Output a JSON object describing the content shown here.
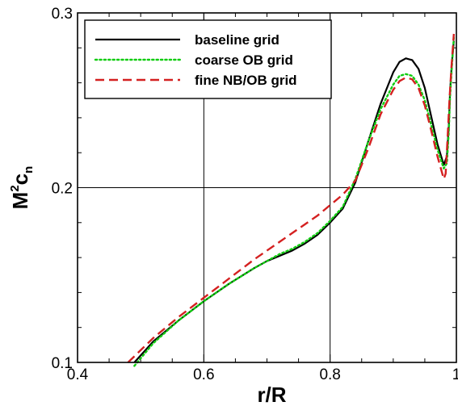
{
  "chart_data": {
    "type": "line",
    "xlabel": "r/R",
    "ylabel": {
      "base": "M",
      "sup": "2",
      "mid": "c",
      "sub": "n"
    },
    "xlim": [
      0.4,
      1.0
    ],
    "ylim": [
      0.1,
      0.3
    ],
    "xticks": [
      0.4,
      0.6,
      0.8,
      1.0
    ],
    "xtick_labels": [
      "0.4",
      "0.6",
      "0.8",
      "1"
    ],
    "yticks": [
      0.1,
      0.2,
      0.3
    ],
    "ytick_labels": [
      "0.1",
      "0.2",
      "0.3"
    ],
    "grid": true,
    "legend_position": "top-left",
    "series": [
      {
        "name": "baseline grid",
        "color": "#000000",
        "style": "solid",
        "x": [
          0.49,
          0.52,
          0.56,
          0.6,
          0.64,
          0.68,
          0.7,
          0.72,
          0.74,
          0.76,
          0.78,
          0.8,
          0.82,
          0.84,
          0.86,
          0.88,
          0.9,
          0.91,
          0.92,
          0.93,
          0.94,
          0.95,
          0.96,
          0.97,
          0.98,
          0.985,
          0.988,
          0.99,
          0.993,
          0.996
        ],
        "y": [
          0.1,
          0.112,
          0.124,
          0.135,
          0.145,
          0.154,
          0.158,
          0.161,
          0.164,
          0.168,
          0.173,
          0.18,
          0.188,
          0.203,
          0.226,
          0.248,
          0.266,
          0.272,
          0.274,
          0.273,
          0.268,
          0.257,
          0.241,
          0.225,
          0.213,
          0.218,
          0.235,
          0.255,
          0.272,
          0.284
        ]
      },
      {
        "name": "coarse OB grid",
        "color": "#11cc11",
        "style": "dotted",
        "x": [
          0.49,
          0.52,
          0.56,
          0.6,
          0.64,
          0.68,
          0.7,
          0.72,
          0.74,
          0.76,
          0.78,
          0.8,
          0.82,
          0.84,
          0.86,
          0.88,
          0.9,
          0.91,
          0.92,
          0.93,
          0.94,
          0.95,
          0.96,
          0.97,
          0.98,
          0.985,
          0.988,
          0.99,
          0.993,
          0.996
        ],
        "y": [
          0.098,
          0.111,
          0.124,
          0.135,
          0.145,
          0.154,
          0.158,
          0.162,
          0.165,
          0.169,
          0.174,
          0.181,
          0.189,
          0.205,
          0.226,
          0.245,
          0.259,
          0.264,
          0.265,
          0.264,
          0.259,
          0.25,
          0.236,
          0.222,
          0.211,
          0.214,
          0.232,
          0.252,
          0.27,
          0.286
        ]
      },
      {
        "name": "fine NB/OB grid",
        "color": "#d42020",
        "style": "dashed",
        "x": [
          0.48,
          0.52,
          0.56,
          0.6,
          0.64,
          0.68,
          0.7,
          0.72,
          0.74,
          0.76,
          0.78,
          0.8,
          0.82,
          0.84,
          0.86,
          0.88,
          0.9,
          0.91,
          0.92,
          0.93,
          0.94,
          0.95,
          0.96,
          0.97,
          0.98,
          0.983,
          0.986,
          0.989,
          0.992,
          0.996
        ],
        "y": [
          0.1,
          0.114,
          0.126,
          0.137,
          0.148,
          0.159,
          0.164,
          0.169,
          0.174,
          0.179,
          0.184,
          0.19,
          0.196,
          0.204,
          0.222,
          0.242,
          0.256,
          0.261,
          0.263,
          0.262,
          0.257,
          0.247,
          0.233,
          0.218,
          0.205,
          0.208,
          0.228,
          0.25,
          0.268,
          0.288
        ]
      }
    ]
  }
}
